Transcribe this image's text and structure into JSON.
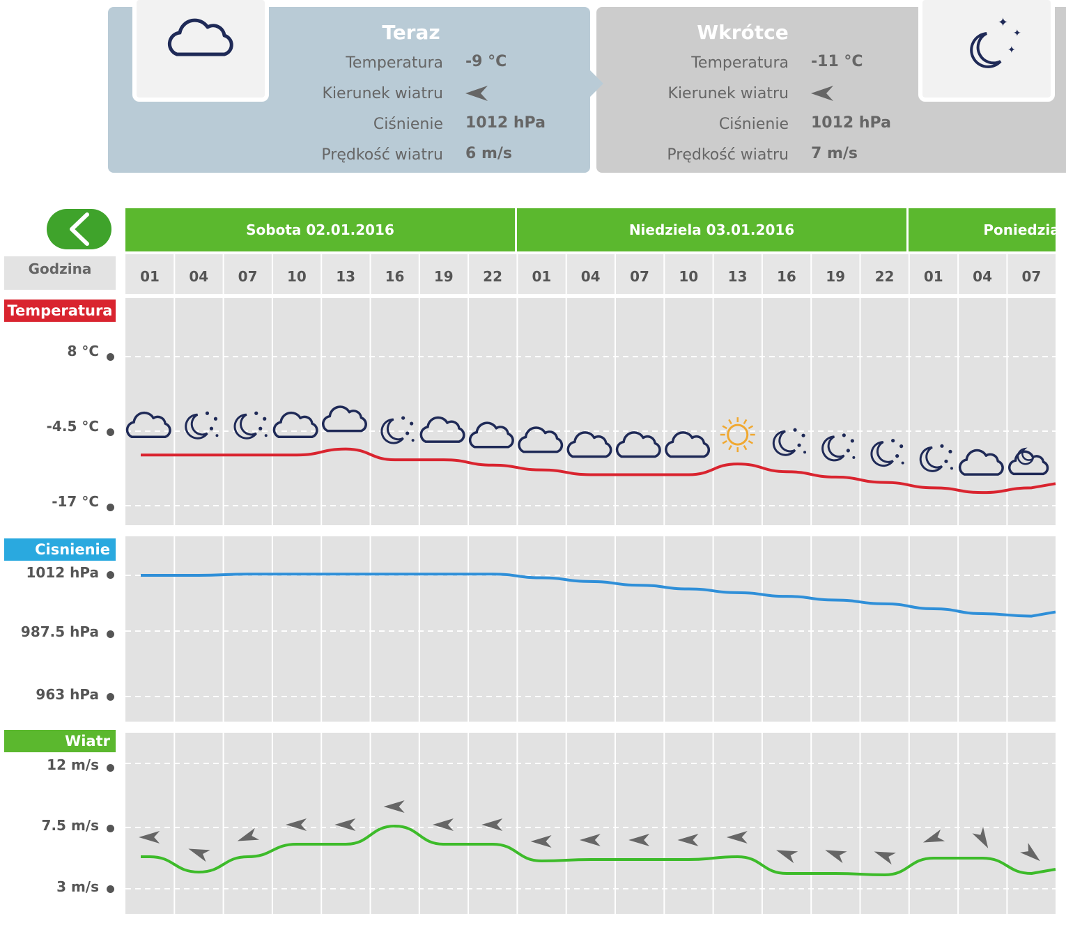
{
  "now": {
    "title": "Teraz",
    "icon": "cloud-icon",
    "labels": [
      "Temperatura",
      "Kierunek wiatru",
      "Ciśnienie",
      "Prędkość wiatru"
    ],
    "temperature": "-9 °C",
    "pressure": "1012 hPa",
    "wind_speed": "6 m/s"
  },
  "soon": {
    "title": "Wkrótce",
    "icon": "moon-stars-icon",
    "labels": [
      "Temperatura",
      "Kierunek wiatru",
      "Ciśnienie",
      "Prędkość wiatru"
    ],
    "temperature": "-11 °C",
    "pressure": "1012 hPa",
    "wind_speed": "7 m/s"
  },
  "days": [
    "Sobota 02.01.2016",
    "Niedziela 03.01.2016",
    "Poniedziałek"
  ],
  "hour_label": "Godzina",
  "hours": [
    "01",
    "04",
    "07",
    "10",
    "13",
    "16",
    "19",
    "22",
    "01",
    "04",
    "07",
    "10",
    "13",
    "16",
    "19",
    "22",
    "01",
    "04",
    "07"
  ],
  "sections": {
    "temperature": "Temperatura",
    "pressure": "Cisnienie",
    "wind": "Wiatr"
  },
  "colors": {
    "green": "#5bb82e",
    "temperature": "#d9242f",
    "pressure": "#2f8fd8",
    "wind": "#3dbb2a"
  },
  "chart_data": [
    {
      "type": "line",
      "title": "Temperatura",
      "x": [
        "01",
        "04",
        "07",
        "10",
        "13",
        "16",
        "19",
        "22",
        "01",
        "04",
        "07",
        "10",
        "13",
        "16",
        "19",
        "22",
        "01",
        "04",
        "07"
      ],
      "y_ticks": [
        "8 °C",
        "-4.5 °C",
        "-17 °C"
      ],
      "ylim": [
        -17,
        8
      ],
      "values": [
        -8.5,
        -8.5,
        -8.5,
        -8.5,
        -7.5,
        -9.3,
        -9.3,
        -10.2,
        -11.0,
        -11.8,
        -11.8,
        -11.8,
        -10.0,
        -11.3,
        -12.2,
        -13.1,
        -14.0,
        -14.8,
        -14.0
      ],
      "weather_icons": [
        "cloud",
        "moon-stars",
        "moon-stars",
        "cloud",
        "cloud",
        "moon-stars",
        "cloud",
        "cloud",
        "cloud",
        "cloud",
        "cloud",
        "cloud",
        "sun",
        "moon-stars",
        "moon-stars",
        "moon-stars",
        "moon-stars",
        "cloud",
        "moon-cloud"
      ]
    },
    {
      "type": "line",
      "title": "Cisnienie",
      "x": [
        "01",
        "04",
        "07",
        "10",
        "13",
        "16",
        "19",
        "22",
        "01",
        "04",
        "07",
        "10",
        "13",
        "16",
        "19",
        "22",
        "01",
        "04",
        "07"
      ],
      "y_ticks": [
        "1012 hPa",
        "987.5 hPa",
        "963 hPa"
      ],
      "ylim": [
        963,
        1012
      ],
      "values": [
        1012,
        1012,
        1012.5,
        1012.5,
        1012.5,
        1012.5,
        1012.5,
        1012.5,
        1011,
        1009.5,
        1008,
        1006.5,
        1005,
        1003.5,
        1002,
        1000.5,
        998.5,
        996.5,
        995.5
      ]
    },
    {
      "type": "line",
      "title": "Wiatr",
      "x": [
        "01",
        "04",
        "07",
        "10",
        "13",
        "16",
        "19",
        "22",
        "01",
        "04",
        "07",
        "10",
        "13",
        "16",
        "19",
        "22",
        "01",
        "04",
        "07"
      ],
      "y_ticks": [
        "12 m/s",
        "7.5 m/s",
        "3 m/s"
      ],
      "ylim": [
        3,
        12
      ],
      "values": [
        5.3,
        4.2,
        5.3,
        6.2,
        6.2,
        7.5,
        6.2,
        6.2,
        5.0,
        5.1,
        5.1,
        5.1,
        5.3,
        4.1,
        4.1,
        4.0,
        5.2,
        5.2,
        4.1
      ],
      "wind_dir_deg": [
        180,
        200,
        160,
        180,
        180,
        180,
        180,
        180,
        180,
        180,
        180,
        180,
        180,
        200,
        200,
        200,
        160,
        60,
        40
      ]
    }
  ]
}
